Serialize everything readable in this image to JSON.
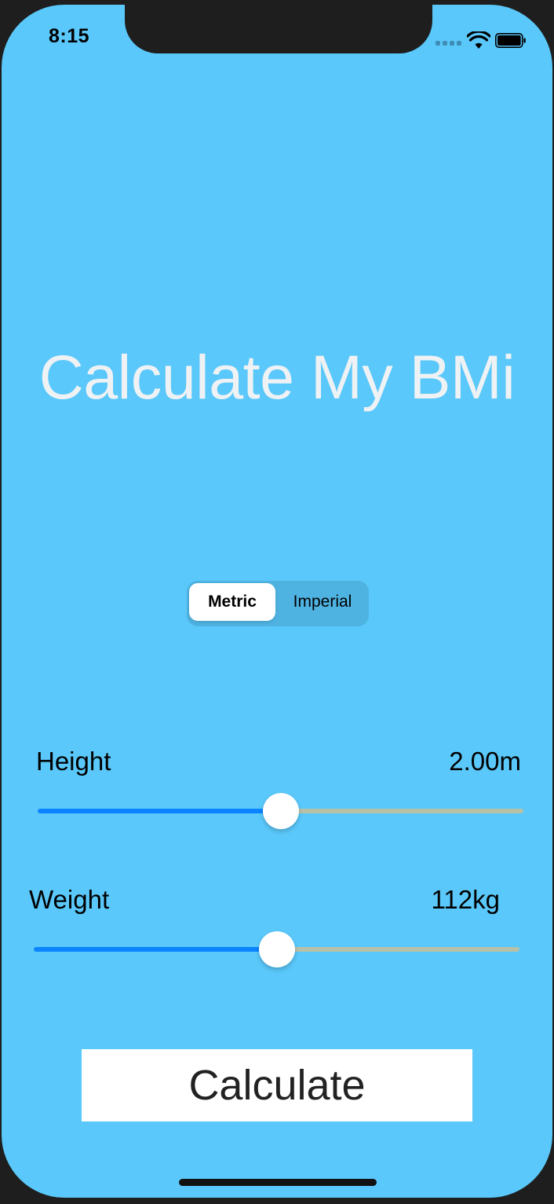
{
  "status_bar": {
    "time": "8:15",
    "signal_icon": "cellular-signal-icon",
    "wifi_icon": "wifi-icon",
    "battery_icon": "battery-icon"
  },
  "title": "Calculate My BMi",
  "unit_selector": {
    "options": [
      "Metric",
      "Imperial"
    ],
    "selected": "Metric"
  },
  "height": {
    "label": "Height",
    "value": "2.00m",
    "slider_fraction": 0.5
  },
  "weight": {
    "label": "Weight",
    "value": "112kg",
    "slider_fraction": 0.5
  },
  "calculate_button": {
    "label": "Calculate"
  },
  "colors": {
    "background": "#5ac8fa",
    "slider_min_track": "#0a84ff",
    "slider_max_track": "#b7c1a8",
    "button_background": "#ffffff"
  }
}
